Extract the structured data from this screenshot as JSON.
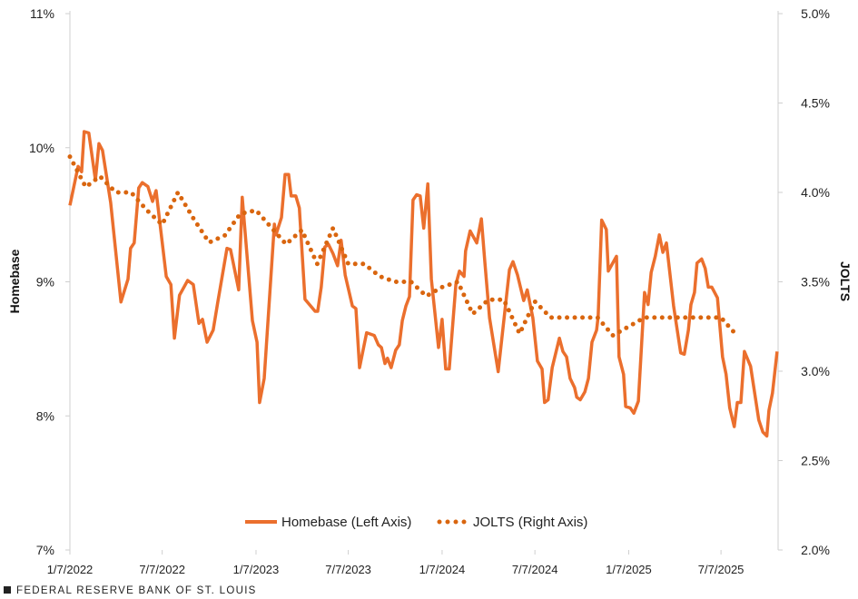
{
  "chart_data": {
    "type": "line",
    "title": "",
    "xlabel": "",
    "ylabel_left": "Homebase",
    "ylabel_right": "JOLTS",
    "xlim": [
      "2022-01-07",
      "2025-10-27"
    ],
    "ylim_left": [
      7,
      11
    ],
    "ylim_right": [
      2.0,
      5.0
    ],
    "grid": false,
    "legend_position": "bottom-center",
    "x_ticks": [
      "1/7/2022",
      "7/7/2022",
      "1/7/2023",
      "7/7/2023",
      "1/7/2024",
      "7/7/2024",
      "1/7/2025",
      "7/7/2025"
    ],
    "x_tick_dates": [
      "2022-01-07",
      "2022-07-07",
      "2023-01-07",
      "2023-07-07",
      "2024-01-07",
      "2024-07-07",
      "2025-01-07",
      "2025-07-07"
    ],
    "y_ticks_left": [
      "7%",
      "8%",
      "9%",
      "10%",
      "11%"
    ],
    "y_tick_values_left": [
      7,
      8,
      9,
      10,
      11
    ],
    "y_ticks_right": [
      "2.0%",
      "2.5%",
      "3.0%",
      "3.5%",
      "4.0%",
      "4.5%",
      "5.0%"
    ],
    "y_tick_values_right": [
      2.0,
      2.5,
      3.0,
      3.5,
      4.0,
      4.5,
      5.0
    ],
    "series": [
      {
        "name": "Homebase (Left Axis)",
        "axis": "left",
        "style": "solid",
        "color": "#EB6F2D",
        "points": [
          [
            "2022-01-07",
            9.57
          ],
          [
            "2022-01-23",
            9.86
          ],
          [
            "2022-01-30",
            9.82
          ],
          [
            "2022-02-04",
            10.12
          ],
          [
            "2022-02-13",
            10.11
          ],
          [
            "2022-02-26",
            9.76
          ],
          [
            "2022-03-05",
            10.03
          ],
          [
            "2022-03-12",
            9.98
          ],
          [
            "2022-03-28",
            9.59
          ],
          [
            "2022-04-17",
            8.85
          ],
          [
            "2022-05-01",
            9.02
          ],
          [
            "2022-05-06",
            9.25
          ],
          [
            "2022-05-13",
            9.29
          ],
          [
            "2022-05-22",
            9.7
          ],
          [
            "2022-05-29",
            9.74
          ],
          [
            "2022-06-09",
            9.71
          ],
          [
            "2022-06-18",
            9.6
          ],
          [
            "2022-06-25",
            9.68
          ],
          [
            "2022-07-15",
            9.04
          ],
          [
            "2022-07-24",
            8.98
          ],
          [
            "2022-07-31",
            8.58
          ],
          [
            "2022-08-10",
            8.9
          ],
          [
            "2022-08-26",
            9.01
          ],
          [
            "2022-09-06",
            8.98
          ],
          [
            "2022-09-17",
            8.69
          ],
          [
            "2022-09-24",
            8.72
          ],
          [
            "2022-10-03",
            8.55
          ],
          [
            "2022-10-15",
            8.64
          ],
          [
            "2022-10-24",
            8.85
          ],
          [
            "2022-11-11",
            9.25
          ],
          [
            "2022-11-18",
            9.24
          ],
          [
            "2022-12-04",
            8.94
          ],
          [
            "2022-12-11",
            9.63
          ],
          [
            "2022-12-31",
            8.71
          ],
          [
            "2023-01-09",
            8.55
          ],
          [
            "2023-01-14",
            8.1
          ],
          [
            "2023-01-23",
            8.28
          ],
          [
            "2023-02-12",
            9.43
          ],
          [
            "2023-02-15",
            9.35
          ],
          [
            "2023-02-26",
            9.48
          ],
          [
            "2023-03-05",
            9.8
          ],
          [
            "2023-03-12",
            9.8
          ],
          [
            "2023-03-17",
            9.64
          ],
          [
            "2023-03-26",
            9.64
          ],
          [
            "2023-04-02",
            9.55
          ],
          [
            "2023-04-13",
            8.87
          ],
          [
            "2023-05-03",
            8.78
          ],
          [
            "2023-05-08",
            8.78
          ],
          [
            "2023-05-15",
            8.96
          ],
          [
            "2023-05-22",
            9.26
          ],
          [
            "2023-05-29",
            9.28
          ],
          [
            "2023-06-07",
            9.21
          ],
          [
            "2023-06-16",
            9.12
          ],
          [
            "2023-06-23",
            9.31
          ],
          [
            "2023-07-01",
            9.05
          ],
          [
            "2023-07-15",
            8.82
          ],
          [
            "2023-07-22",
            8.8
          ],
          [
            "2023-07-29",
            8.36
          ],
          [
            "2023-08-12",
            8.62
          ],
          [
            "2023-08-27",
            8.6
          ],
          [
            "2023-09-04",
            8.53
          ],
          [
            "2023-09-10",
            8.51
          ],
          [
            "2023-09-17",
            8.39
          ],
          [
            "2023-09-22",
            8.43
          ],
          [
            "2023-09-29",
            8.36
          ],
          [
            "2023-10-08",
            8.49
          ],
          [
            "2023-10-15",
            8.53
          ],
          [
            "2023-10-21",
            8.71
          ],
          [
            "2023-10-28",
            8.82
          ],
          [
            "2023-11-04",
            8.89
          ],
          [
            "2023-11-11",
            9.61
          ],
          [
            "2023-11-18",
            9.65
          ],
          [
            "2023-11-25",
            9.64
          ],
          [
            "2023-12-02",
            9.4
          ],
          [
            "2023-12-10",
            9.73
          ],
          [
            "2023-12-17",
            9.02
          ],
          [
            "2023-12-31",
            8.51
          ],
          [
            "2024-01-07",
            8.72
          ],
          [
            "2024-01-14",
            8.35
          ],
          [
            "2024-01-21",
            8.35
          ],
          [
            "2024-02-03",
            8.98
          ],
          [
            "2024-02-10",
            9.08
          ],
          [
            "2024-02-19",
            9.04
          ],
          [
            "2024-02-22",
            9.23
          ],
          [
            "2024-03-02",
            9.38
          ],
          [
            "2024-03-15",
            9.29
          ],
          [
            "2024-03-24",
            9.47
          ],
          [
            "2024-03-31",
            9.14
          ],
          [
            "2024-04-09",
            8.73
          ],
          [
            "2024-04-26",
            8.33
          ],
          [
            "2024-05-18",
            9.09
          ],
          [
            "2024-05-25",
            9.15
          ],
          [
            "2024-06-03",
            9.05
          ],
          [
            "2024-06-15",
            8.86
          ],
          [
            "2024-06-22",
            8.94
          ],
          [
            "2024-07-03",
            8.73
          ],
          [
            "2024-07-12",
            8.41
          ],
          [
            "2024-07-21",
            8.35
          ],
          [
            "2024-07-26",
            8.1
          ],
          [
            "2024-08-02",
            8.12
          ],
          [
            "2024-08-10",
            8.36
          ],
          [
            "2024-08-24",
            8.58
          ],
          [
            "2024-08-31",
            8.48
          ],
          [
            "2024-09-07",
            8.44
          ],
          [
            "2024-09-14",
            8.28
          ],
          [
            "2024-09-23",
            8.21
          ],
          [
            "2024-09-27",
            8.14
          ],
          [
            "2024-10-04",
            8.12
          ],
          [
            "2024-10-13",
            8.18
          ],
          [
            "2024-10-20",
            8.28
          ],
          [
            "2024-10-27",
            8.55
          ],
          [
            "2024-11-05",
            8.64
          ],
          [
            "2024-11-08",
            8.74
          ],
          [
            "2024-11-15",
            9.46
          ],
          [
            "2024-11-24",
            9.39
          ],
          [
            "2024-11-28",
            9.08
          ],
          [
            "2024-12-14",
            9.19
          ],
          [
            "2024-12-19",
            8.44
          ],
          [
            "2024-12-28",
            8.31
          ],
          [
            "2025-01-01",
            8.07
          ],
          [
            "2025-01-10",
            8.06
          ],
          [
            "2025-01-17",
            8.02
          ],
          [
            "2025-01-26",
            8.11
          ],
          [
            "2025-02-07",
            8.92
          ],
          [
            "2025-02-14",
            8.83
          ],
          [
            "2025-02-20",
            9.07
          ],
          [
            "2025-02-28",
            9.19
          ],
          [
            "2025-03-08",
            9.35
          ],
          [
            "2025-03-15",
            9.22
          ],
          [
            "2025-03-22",
            9.29
          ],
          [
            "2025-04-05",
            8.82
          ],
          [
            "2025-04-19",
            8.47
          ],
          [
            "2025-04-26",
            8.46
          ],
          [
            "2025-05-04",
            8.64
          ],
          [
            "2025-05-09",
            8.83
          ],
          [
            "2025-05-16",
            8.92
          ],
          [
            "2025-05-21",
            9.14
          ],
          [
            "2025-05-30",
            9.17
          ],
          [
            "2025-06-06",
            9.1
          ],
          [
            "2025-06-12",
            8.96
          ],
          [
            "2025-06-19",
            8.96
          ],
          [
            "2025-06-30",
            8.88
          ],
          [
            "2025-07-10",
            8.44
          ],
          [
            "2025-07-17",
            8.31
          ],
          [
            "2025-07-24",
            8.06
          ],
          [
            "2025-08-02",
            7.92
          ],
          [
            "2025-08-08",
            8.1
          ],
          [
            "2025-08-15",
            8.1
          ],
          [
            "2025-08-22",
            8.48
          ],
          [
            "2025-09-03",
            8.37
          ],
          [
            "2025-09-19",
            7.97
          ],
          [
            "2025-09-27",
            7.88
          ],
          [
            "2025-10-05",
            7.85
          ],
          [
            "2025-10-09",
            8.04
          ],
          [
            "2025-10-16",
            8.17
          ],
          [
            "2025-10-25",
            8.48
          ]
        ]
      },
      {
        "name": "JOLTS (Right Axis)",
        "axis": "right",
        "style": "dotted",
        "color": "#D9650E",
        "points": [
          [
            "2022-01-07",
            4.2
          ],
          [
            "2022-02-07",
            4.03
          ],
          [
            "2022-03-07",
            4.09
          ],
          [
            "2022-04-07",
            4.0
          ],
          [
            "2022-05-07",
            4.0
          ],
          [
            "2022-06-07",
            3.9
          ],
          [
            "2022-07-07",
            3.82
          ],
          [
            "2022-08-07",
            4.0
          ],
          [
            "2022-09-07",
            3.85
          ],
          [
            "2022-10-07",
            3.72
          ],
          [
            "2022-11-07",
            3.76
          ],
          [
            "2022-12-07",
            3.88
          ],
          [
            "2023-01-07",
            3.9
          ],
          [
            "2023-02-07",
            3.8
          ],
          [
            "2023-03-07",
            3.71
          ],
          [
            "2023-04-07",
            3.79
          ],
          [
            "2023-05-07",
            3.6
          ],
          [
            "2023-06-07",
            3.8
          ],
          [
            "2023-07-07",
            3.6
          ],
          [
            "2023-08-07",
            3.6
          ],
          [
            "2023-09-07",
            3.53
          ],
          [
            "2023-10-07",
            3.5
          ],
          [
            "2023-11-07",
            3.5
          ],
          [
            "2023-12-07",
            3.42
          ],
          [
            "2024-01-07",
            3.47
          ],
          [
            "2024-02-07",
            3.5
          ],
          [
            "2024-03-07",
            3.32
          ],
          [
            "2024-04-07",
            3.4
          ],
          [
            "2024-05-07",
            3.4
          ],
          [
            "2024-06-07",
            3.21
          ],
          [
            "2024-07-07",
            3.39
          ],
          [
            "2024-08-07",
            3.3
          ],
          [
            "2024-09-07",
            3.3
          ],
          [
            "2024-10-07",
            3.3
          ],
          [
            "2024-11-07",
            3.3
          ],
          [
            "2024-12-07",
            3.2
          ],
          [
            "2025-01-07",
            3.25
          ],
          [
            "2025-02-07",
            3.3
          ],
          [
            "2025-03-07",
            3.3
          ],
          [
            "2025-04-07",
            3.3
          ],
          [
            "2025-05-07",
            3.3
          ],
          [
            "2025-06-07",
            3.3
          ],
          [
            "2025-07-07",
            3.3
          ],
          [
            "2025-08-07",
            3.2
          ]
        ]
      }
    ]
  },
  "legend": {
    "homebase": "Homebase (Left Axis)",
    "jolts": "JOLTS (Right Axis)"
  },
  "footer": {
    "source": "FEDERAL RESERVE BANK OF ST. LOUIS"
  }
}
